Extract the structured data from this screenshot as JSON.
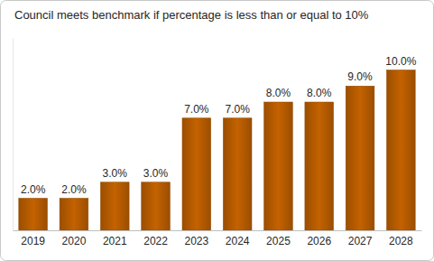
{
  "chart_data": {
    "type": "bar",
    "title": "Council meets benchmark if percentage is less than or equal to 10%",
    "categories": [
      "2019",
      "2020",
      "2021",
      "2022",
      "2023",
      "2024",
      "2025",
      "2026",
      "2027",
      "2028"
    ],
    "values": [
      2,
      2,
      3,
      3,
      7,
      7,
      8,
      8,
      9,
      10
    ],
    "value_labels": [
      "2.0%",
      "2.0%",
      "3.0%",
      "3.0%",
      "7.0%",
      "7.0%",
      "8.0%",
      "8.0%",
      "9.0%",
      "10.0%"
    ],
    "color": "#b35a00",
    "ylim": [
      0,
      12
    ],
    "data_labels": true,
    "tick_labels": "x",
    "grid": false
  }
}
